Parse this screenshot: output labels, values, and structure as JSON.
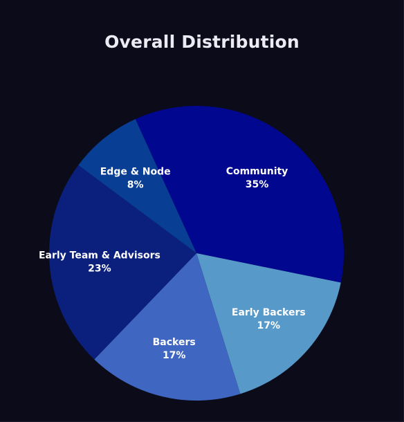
{
  "chart_data": {
    "type": "pie",
    "title": "Overall Distribution",
    "slices": [
      {
        "label": "Community",
        "value": 35,
        "display": "35%",
        "color": "#02078f"
      },
      {
        "label": "Early Backers",
        "value": 17,
        "display": "17%",
        "color": "#579ac9"
      },
      {
        "label": "Backers",
        "value": 17,
        "display": "17%",
        "color": "#3f66c0"
      },
      {
        "label": "Early Team & Advisors",
        "value": 23,
        "display": "23%",
        "color": "#0b1f7c"
      },
      {
        "label": "Edge & Node",
        "value": 8,
        "display": "8%",
        "color": "#083e93"
      }
    ],
    "legend": "none",
    "data_labels": "inside"
  }
}
